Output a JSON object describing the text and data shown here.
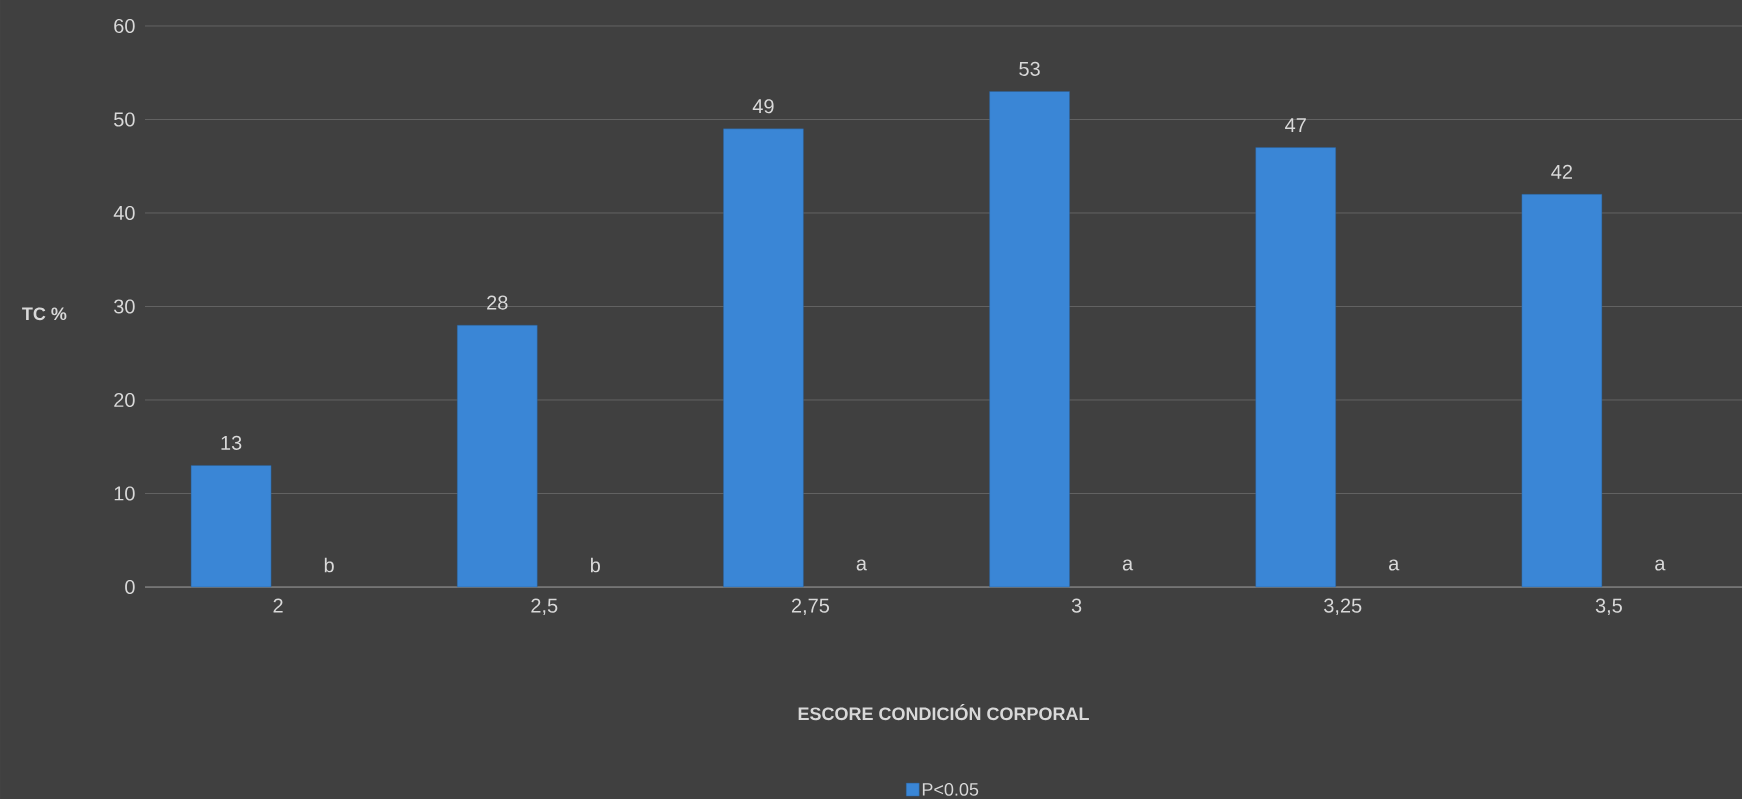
{
  "chart_data": {
    "type": "bar",
    "xlabel": "ESCORE CONDICIÓN CORPORAL",
    "ylabel": "TC %",
    "categories": [
      "2",
      "2,5",
      "2,75",
      "3",
      "3,25",
      "3,5"
    ],
    "series": [
      {
        "name": "P<0.05",
        "color": "#3a86d6",
        "values": [
          13,
          28,
          49,
          53,
          47,
          42
        ]
      }
    ],
    "ylim": [
      0,
      60
    ],
    "yticks": [
      0,
      10,
      20,
      30,
      40,
      50,
      60
    ],
    "grid": "y",
    "legend": "bottom",
    "data_labels": true,
    "annotations": [
      "b",
      "b",
      "a",
      "a",
      "a",
      "a"
    ]
  }
}
